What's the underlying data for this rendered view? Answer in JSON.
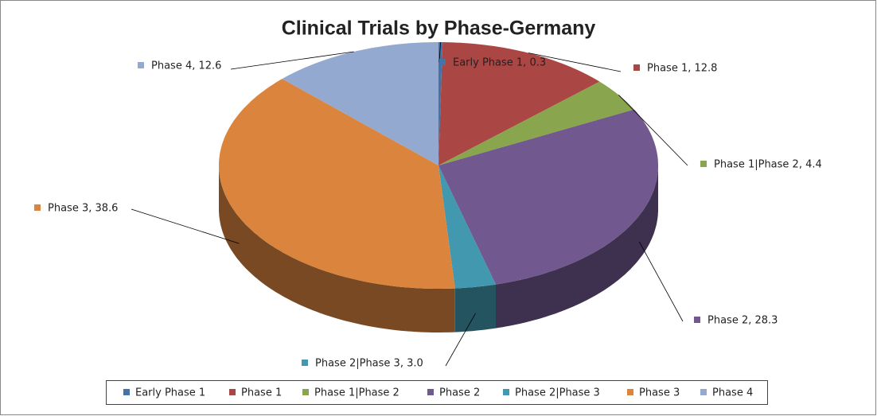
{
  "chart_data": {
    "type": "pie3d",
    "title": "Clinical Trials by Phase-Germany",
    "categories": [
      "Early Phase 1",
      "Phase 1",
      "Phase 1|Phase 2",
      "Phase 2",
      "Phase 2|Phase 3",
      "Phase 3",
      "Phase 4"
    ],
    "values": [
      0.3,
      12.8,
      4.4,
      28.3,
      3.0,
      38.6,
      12.6
    ],
    "value_labels": [
      "Early Phase 1, 0.3",
      "Phase 1, 12.8",
      "Phase 1|Phase 2, 4.4",
      "Phase 2, 28.3",
      "Phase 2|Phase 3, 3.0",
      "Phase 3, 38.6",
      "Phase 4, 12.6"
    ],
    "colors": [
      "#4572a7",
      "#aa4643",
      "#89a54e",
      "#71588f",
      "#4198af",
      "#db843d",
      "#93a9cf"
    ],
    "legend": "bottom"
  }
}
